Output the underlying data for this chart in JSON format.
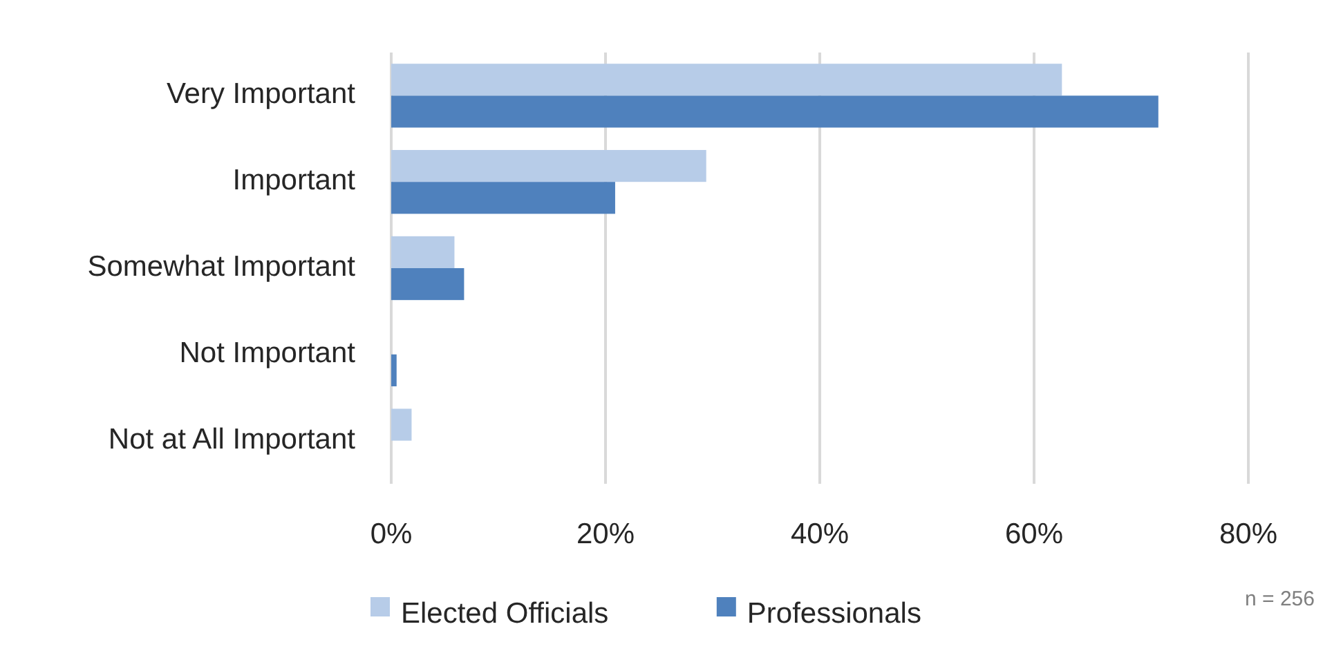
{
  "chart_data": {
    "type": "bar",
    "orientation": "horizontal",
    "categories": [
      "Very Important",
      "Important",
      "Somewhat Important",
      "Not Important",
      "Not at All Important"
    ],
    "series": [
      {
        "name": "Elected Officials",
        "color": "#b7cce8",
        "values": [
          62.6,
          29.4,
          5.9,
          0,
          1.9
        ]
      },
      {
        "name": "Professionals",
        "color": "#4f81bd",
        "values": [
          71.6,
          20.9,
          6.8,
          0.5,
          0
        ]
      }
    ],
    "xlim": [
      0,
      80
    ],
    "xticks": [
      {
        "value": 0,
        "label": "0%"
      },
      {
        "value": 20,
        "label": "20%"
      },
      {
        "value": 40,
        "label": "40%"
      },
      {
        "value": 60,
        "label": "60%"
      },
      {
        "value": 80,
        "label": "80%"
      }
    ],
    "grid": "x",
    "legend": "bottom",
    "annotations": [
      "n = 256"
    ]
  }
}
